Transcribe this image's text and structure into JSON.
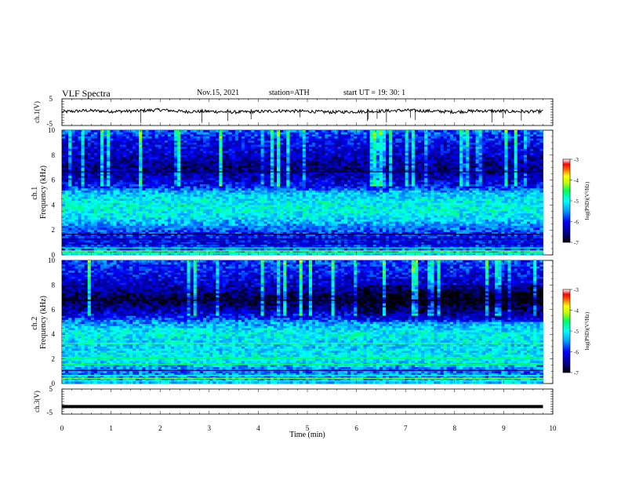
{
  "header": {
    "title": "VLF  Spectra",
    "date": "Nov.15, 2021",
    "station": "station=ATH",
    "start": "start  UT  =    19: 30: 1"
  },
  "chart_data": [
    {
      "type": "line",
      "panel": "ch1-waveform",
      "ylabel": "ch.1(V)",
      "ylim": [
        -5,
        5
      ],
      "yticks": [
        5,
        -5
      ],
      "x": [
        0.0,
        0.5,
        1.0,
        1.5,
        2.0,
        2.5,
        3.0,
        3.5,
        4.0,
        4.5,
        5.0,
        5.5,
        6.0,
        6.5,
        7.0,
        7.5,
        8.0,
        8.5,
        9.0,
        9.5,
        9.8
      ],
      "values": [
        0.1,
        0.6,
        0.3,
        0.4,
        0.9,
        0.2,
        0.3,
        0.0,
        0.2,
        0.5,
        0.3,
        0.0,
        0.2,
        0.4,
        0.7,
        0.4,
        0.1,
        0.5,
        0.3,
        0.2,
        0.3
      ]
    },
    {
      "type": "heatmap",
      "panel": "ch1-spectrogram",
      "ylabel": "ch.1\nFrequency  (kHz)",
      "ylim": [
        0,
        10
      ],
      "yticks": [
        0,
        2,
        4,
        6,
        8,
        10
      ],
      "colorbar_label": "log(PSD)(V²/Hz)",
      "colorbar_ticks": [
        "-3",
        "-4",
        "-5",
        "-6",
        "-7"
      ],
      "colorbar_range": [
        -7,
        -3
      ],
      "psd_profile": {
        "freq_khz": [
          0.0,
          0.5,
          1.0,
          1.5,
          2.0,
          2.5,
          3.0,
          3.5,
          4.0,
          4.5,
          5.0,
          5.5,
          6.0,
          6.5,
          7.0,
          7.5,
          8.0,
          8.5,
          9.0,
          9.5,
          10.0
        ],
        "log_psd": [
          -5.0,
          -5.8,
          -6.1,
          -6.0,
          -5.7,
          -5.4,
          -5.1,
          -5.0,
          -5.0,
          -5.1,
          -5.3,
          -6.0,
          -6.3,
          -6.4,
          -6.6,
          -6.4,
          -6.3,
          -6.2,
          -6.1,
          -5.9,
          -5.7
        ]
      }
    },
    {
      "type": "heatmap",
      "panel": "ch2-spectrogram",
      "ylabel": "ch.2\nFrequency  (kHz)",
      "ylim": [
        0,
        10
      ],
      "yticks": [
        0,
        2,
        4,
        6,
        8,
        10
      ],
      "colorbar_label": "log(PSD)(V²/Hz)",
      "colorbar_ticks": [
        "-3",
        "-4",
        "-5",
        "-6",
        "-7"
      ],
      "colorbar_range": [
        -7,
        -3
      ],
      "psd_profile": {
        "freq_khz": [
          0.0,
          0.5,
          1.0,
          1.5,
          2.0,
          2.5,
          3.0,
          3.5,
          4.0,
          4.5,
          5.0,
          5.5,
          6.0,
          6.5,
          7.0,
          7.5,
          8.0,
          8.5,
          9.0,
          9.5,
          10.0
        ],
        "log_psd": [
          -5.2,
          -5.5,
          -5.6,
          -5.3,
          -5.0,
          -5.1,
          -5.2,
          -5.1,
          -5.0,
          -5.2,
          -5.5,
          -6.1,
          -6.4,
          -6.7,
          -6.8,
          -6.5,
          -6.3,
          -6.2,
          -6.0,
          -5.9,
          -5.8
        ]
      }
    },
    {
      "type": "line",
      "panel": "ch3-waveform",
      "ylabel": "ch.3(V)",
      "ylim": [
        -5,
        5
      ],
      "yticks": [
        5,
        -5
      ],
      "x": [
        0.0,
        9.8
      ],
      "values": [
        -2.0,
        -2.0
      ]
    }
  ],
  "xaxis": {
    "label": "Time  (min)",
    "range": [
      0,
      10
    ],
    "ticks": [
      "0",
      "1",
      "2",
      "3",
      "4",
      "5",
      "6",
      "7",
      "8",
      "9",
      "10"
    ],
    "data_end_min": 9.8
  }
}
